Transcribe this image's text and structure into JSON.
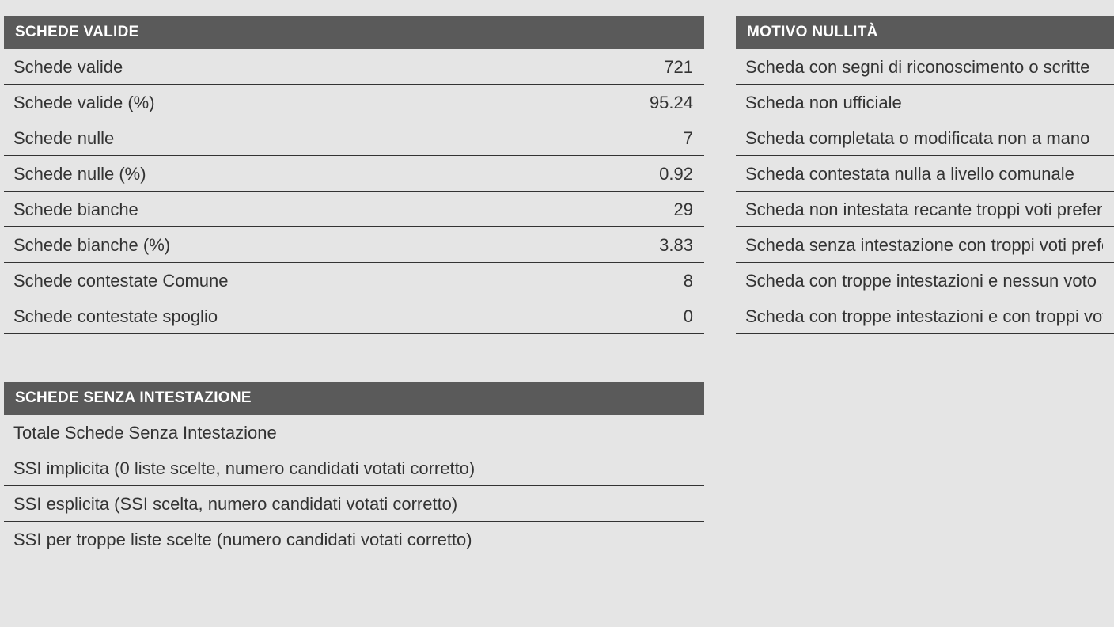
{
  "colors": {
    "header_bg": "#5a5a5a",
    "header_text": "#ffffff",
    "body_bg": "#e5e5e5",
    "row_border": "#333333",
    "text": "#333333"
  },
  "typography": {
    "header_fontsize": 19,
    "header_weight": "bold",
    "row_fontsize": 22,
    "font_family": "Arial"
  },
  "schede_valide": {
    "title": "SCHEDE VALIDE",
    "rows": [
      {
        "label": "Schede valide",
        "value": "721"
      },
      {
        "label": "Schede valide (%)",
        "value": "95.24"
      },
      {
        "label": "Schede nulle",
        "value": "7"
      },
      {
        "label": "Schede nulle (%)",
        "value": "0.92"
      },
      {
        "label": "Schede bianche",
        "value": "29"
      },
      {
        "label": "Schede bianche (%)",
        "value": "3.83"
      },
      {
        "label": "Schede contestate Comune",
        "value": "8"
      },
      {
        "label": "Schede contestate spoglio",
        "value": "0"
      }
    ]
  },
  "motivo_nullita": {
    "title": "MOTIVO NULLITÀ",
    "rows": [
      {
        "label": "Scheda con segni di riconoscimento o scritte"
      },
      {
        "label": "Scheda non ufficiale"
      },
      {
        "label": "Scheda completata o modificata non a mano"
      },
      {
        "label": "Scheda contestata nulla a livello comunale"
      },
      {
        "label": "Scheda non intestata recante troppi voti preferenziali"
      },
      {
        "label": "Scheda senza intestazione con troppi voti preferenziali"
      },
      {
        "label": "Scheda con troppe intestazioni e nessun voto"
      },
      {
        "label": "Scheda con troppe intestazioni e con troppi voti"
      }
    ]
  },
  "schede_senza_intestazione": {
    "title": "SCHEDE SENZA INTESTAZIONE",
    "rows": [
      {
        "label": "Totale Schede Senza Intestazione"
      },
      {
        "label": "SSI implicita (0 liste scelte, numero candidati votati corretto)"
      },
      {
        "label": "SSI esplicita (SSI scelta, numero candidati votati corretto)"
      },
      {
        "label": "SSI per troppe liste scelte (numero candidati votati corretto)"
      }
    ]
  }
}
